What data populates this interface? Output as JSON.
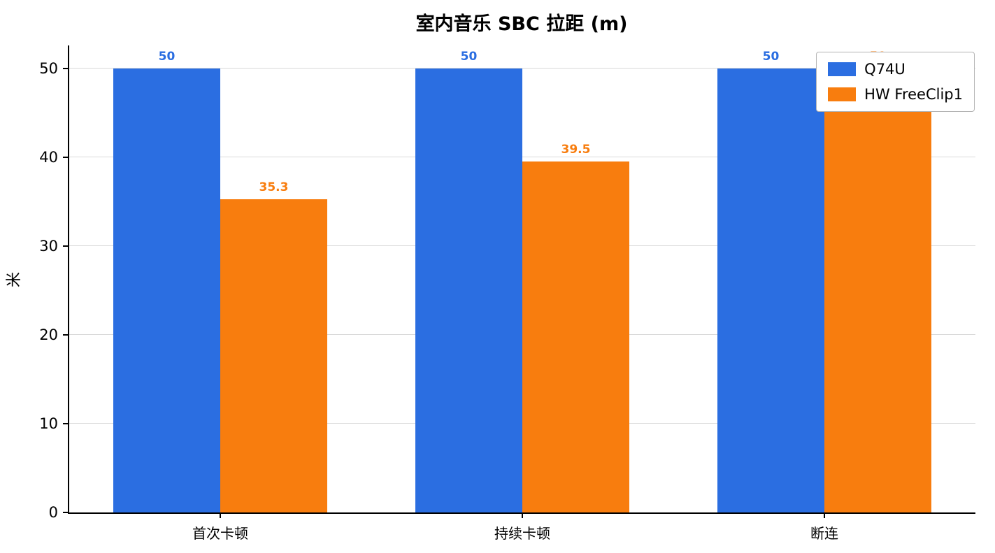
{
  "chart_data": {
    "type": "bar",
    "title": "室内音乐 SBC 拉距 (m)",
    "xlabel": "",
    "ylabel": "米",
    "categories": [
      "首次卡顿",
      "持续卡顿",
      "断连"
    ],
    "series": [
      {
        "name": "Q74U",
        "color": "#2b6ee1",
        "values": [
          50,
          50,
          50
        ],
        "labels": [
          "50",
          "50",
          "50"
        ]
      },
      {
        "name": "HW FreeClip1",
        "color": "#f87d0e",
        "values": [
          35.3,
          39.5,
          50
        ],
        "labels": [
          "35.3",
          "39.5",
          "50"
        ]
      }
    ],
    "ylim": [
      0,
      50
    ],
    "yticks": [
      0,
      10,
      20,
      30,
      40,
      50
    ],
    "grid": true,
    "legend_position": "top-right"
  }
}
